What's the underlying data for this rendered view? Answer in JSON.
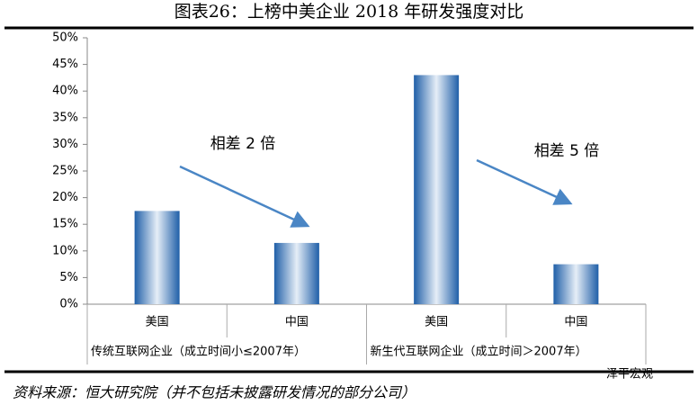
{
  "chart_data": {
    "type": "bar",
    "title": "图表26：上榜中美企业 2018 年研发强度对比",
    "categories": [
      "美国",
      "中国",
      "美国",
      "中国"
    ],
    "groups": [
      "传统互联网企业（成立时间小≤2007年）",
      "新生代互联网企业（成立时间＞2007年）"
    ],
    "values": [
      17.5,
      11.5,
      43,
      7.5
    ],
    "color": "#1f5fa8",
    "ylim": [
      0,
      50
    ],
    "yticks": [
      {
        "value": 0,
        "label": "0%"
      },
      {
        "value": 5,
        "label": "5%"
      },
      {
        "value": 10,
        "label": "10%"
      },
      {
        "value": 15,
        "label": "15%"
      },
      {
        "value": 20,
        "label": "20%"
      },
      {
        "value": 25,
        "label": "25%"
      },
      {
        "value": 30,
        "label": "30%"
      },
      {
        "value": 35,
        "label": "35%"
      },
      {
        "value": 40,
        "label": "40%"
      },
      {
        "value": 45,
        "label": "45%"
      },
      {
        "value": 50,
        "label": "50%"
      }
    ],
    "annotations": [
      "相差 2 倍",
      "相差 5 倍"
    ],
    "source": "资料来源：恒大研究院（并不包括未披露研发情况的部分公司）",
    "watermark": "泽平宏观"
  }
}
